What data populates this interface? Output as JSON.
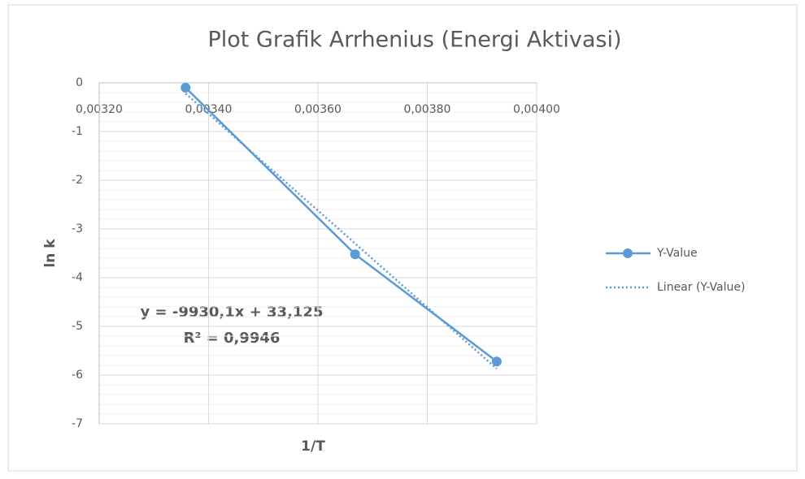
{
  "chart_data": {
    "type": "scatter",
    "title": "Plot Grafik Arrhenius (Energi Aktivasi)",
    "x_label": "1/T",
    "y_label": "ln k",
    "series": [
      {
        "name": "Y-Value",
        "color": "#5b9bd5",
        "style": "solid-markers",
        "x": [
          0.003358,
          0.003668,
          0.003927
        ],
        "values": [
          -0.1,
          -3.52,
          -5.72
        ]
      },
      {
        "name": "Linear (Y-Value)",
        "color": "#5b9bd5",
        "style": "dotted",
        "x": [
          0.003358,
          0.003927
        ],
        "values": [
          -0.22,
          -5.87
        ]
      }
    ],
    "annotations": [
      "y = -9930,1x + 33,125",
      "R² = 0,9946"
    ],
    "xlim": [
      0.0032,
      0.004
    ],
    "xticks": [
      {
        "value": 0.0032,
        "label": "0,00320"
      },
      {
        "value": 0.0034,
        "label": "0,00340"
      },
      {
        "value": 0.0036,
        "label": "0,00360"
      },
      {
        "value": 0.0038,
        "label": "0,00380"
      },
      {
        "value": 0.004,
        "label": "0,00400"
      }
    ],
    "ylim": [
      -7,
      0
    ],
    "yticks": [
      0,
      -1,
      -2,
      -3,
      -4,
      -5,
      -6,
      -7
    ],
    "grid": true,
    "legend": "right"
  }
}
